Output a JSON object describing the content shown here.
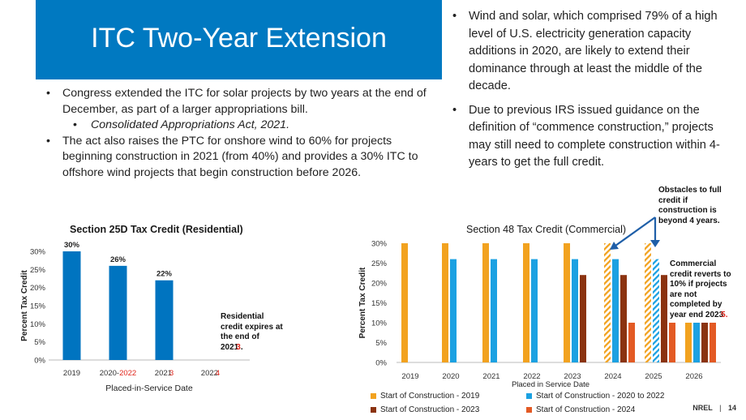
{
  "slide": {
    "title": "ITC Two-Year Extension",
    "left_bullets": [
      "Congress extended the ITC for solar projects by two years at the end of December, as part of a larger appropriations bill.",
      "Consolidated Appropriations Act, 2021.",
      "The act also raises the PTC for onshore wind to 60% for projects beginning construction in 2021 (from 40%) and provides a 30% ITC to offshore wind projects that begin construction before 2026."
    ],
    "right_bullets": [
      "Wind and solar, which comprised 79% of a high level of U.S. electricity generation capacity additions in 2020, are likely to extend their dominance through at least the middle of the decade.",
      "Due to previous IRS issued guidance on the definition of “commence construction,” projects may still need to complete construction within 4-years to get the full credit."
    ],
    "footer_org": "NREL",
    "footer_sep": "|",
    "page_number": "14"
  },
  "colors": {
    "title_bg": "#0079c1",
    "blue_bar": "#0074c0",
    "orange": "#f2a21f",
    "cyan": "#1ba1e2",
    "brown": "#8b3310",
    "redorange": "#e35a24",
    "red_text": "#e0251b"
  },
  "chart_data": [
    {
      "type": "bar",
      "title": "Section 25D Tax Credit (Residential)",
      "xlabel": "Placed-in-Service Date",
      "ylabel": "Percent Tax Credit",
      "ylim": [
        0,
        30
      ],
      "yticks": [
        "0%",
        "5%",
        "10%",
        "15%",
        "20%",
        "25%",
        "30%"
      ],
      "categories": [
        "2019",
        "2020",
        "2021",
        "2022"
      ],
      "category_corrections": [
        "",
        "2022",
        "3",
        "4"
      ],
      "values": [
        30,
        26,
        22,
        null
      ],
      "data_labels": [
        "30%",
        "26%",
        "22%",
        ""
      ],
      "annotation_lines": [
        "Residential",
        "credit expires at",
        "the end of"
      ],
      "annotation_year": "2021",
      "annotation_correction": "3",
      "annotation_end": "."
    },
    {
      "type": "bar",
      "title": "Section 48 Tax Credit (Commercial)",
      "xlabel": "Placed in Service Date",
      "ylabel": "Percent Tax Credit",
      "ylim": [
        0,
        30
      ],
      "yticks": [
        "0%",
        "5%",
        "10%",
        "15%",
        "20%",
        "25%",
        "30%"
      ],
      "categories": [
        "2019",
        "2020",
        "2021",
        "2022",
        "2023",
        "2024",
        "2025",
        "2026"
      ],
      "series": [
        {
          "name": "Start of Construction - 2019",
          "values": [
            30,
            30,
            30,
            30,
            30,
            30,
            30,
            10
          ],
          "hatched_from_index": 5
        },
        {
          "name": "Start of Construction - 2020 to 2022",
          "values": [
            null,
            26,
            26,
            26,
            26,
            26,
            26,
            10
          ],
          "hatched_from_index": 6
        },
        {
          "name": "Start of Construction - 2023",
          "values": [
            null,
            null,
            null,
            null,
            22,
            22,
            22,
            10
          ]
        },
        {
          "name": "Start of Construction - 2024",
          "values": [
            null,
            null,
            null,
            null,
            null,
            10,
            10,
            10
          ]
        }
      ],
      "annotations": {
        "obstacles": [
          "Obstacles to full",
          "credit if",
          "construction is",
          "beyond 4 years."
        ],
        "reverts_lines": [
          "Commercial",
          "credit reverts to",
          "10% if projects",
          "are not",
          "completed by"
        ],
        "reverts_year_prefix": "year end ",
        "reverts_year": "2023",
        "reverts_correction": "5",
        "reverts_end": "."
      }
    }
  ]
}
